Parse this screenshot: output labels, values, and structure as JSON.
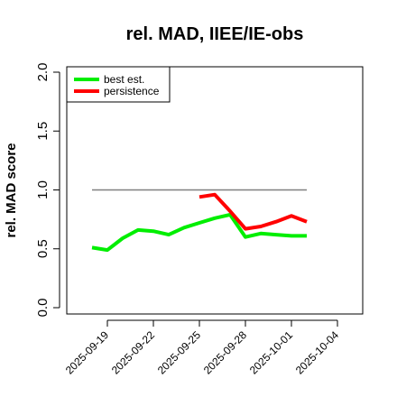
{
  "chart_data": {
    "type": "line",
    "title": "rel. MAD, IIEE/IE-obs",
    "xlabel": "",
    "ylabel": "rel. MAD score",
    "ylim": [
      0.0,
      2.0
    ],
    "yticks": [
      0.0,
      0.5,
      1.0,
      1.5,
      2.0
    ],
    "ytick_labels": [
      "0.0",
      "0.5",
      "1.0",
      "1.5",
      "2.0"
    ],
    "xticks": [
      "2025-09-19",
      "2025-09-22",
      "2025-09-25",
      "2025-09-28",
      "2025-10-01",
      "2025-10-04"
    ],
    "grid": false,
    "legend_position": "top-left",
    "reference_line": {
      "y": 1.0,
      "x_start": "2025-09-18",
      "x_end": "2025-10-02",
      "color": "#808080"
    },
    "series": [
      {
        "name": "best est.",
        "color": "#00ee00",
        "x": [
          "2025-09-18",
          "2025-09-19",
          "2025-09-20",
          "2025-09-21",
          "2025-09-22",
          "2025-09-23",
          "2025-09-24",
          "2025-09-25",
          "2025-09-26",
          "2025-09-27",
          "2025-09-28",
          "2025-09-29",
          "2025-09-30",
          "2025-10-01",
          "2025-10-02"
        ],
        "values": [
          0.51,
          0.49,
          0.59,
          0.66,
          0.65,
          0.62,
          0.68,
          0.72,
          0.76,
          0.79,
          0.6,
          0.63,
          0.62,
          0.61,
          0.61
        ]
      },
      {
        "name": "persistence",
        "color": "#ff0000",
        "x": [
          "2025-09-25",
          "2025-09-26",
          "2025-09-27",
          "2025-09-28",
          "2025-09-29",
          "2025-09-30",
          "2025-10-01",
          "2025-10-02"
        ],
        "values": [
          0.94,
          0.96,
          0.82,
          0.67,
          0.69,
          0.73,
          0.78,
          0.73
        ]
      }
    ]
  }
}
